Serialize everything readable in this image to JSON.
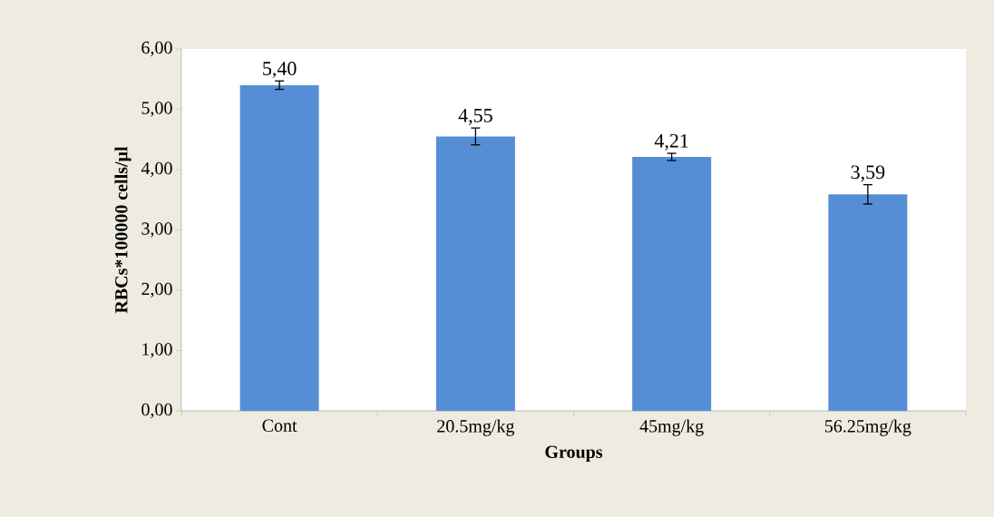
{
  "chart_data": {
    "type": "bar",
    "xlabel": "Groups",
    "ylabel": "RBCs*100000 cells/µl",
    "categories": [
      "Cont",
      "20.5mg/kg",
      "45mg/kg",
      "56.25mg/kg"
    ],
    "values": [
      5.4,
      4.55,
      4.21,
      3.59
    ],
    "errors": [
      0.07,
      0.14,
      0.06,
      0.16
    ],
    "value_labels": [
      "5,40",
      "4,55",
      "4,21",
      "3,59"
    ],
    "color": "#558ed5",
    "ylim": [
      0,
      6
    ],
    "yticks": [
      {
        "value": 0,
        "label": "0,00"
      },
      {
        "value": 1,
        "label": "1,00"
      },
      {
        "value": 2,
        "label": "2,00"
      },
      {
        "value": 3,
        "label": "3,00"
      },
      {
        "value": 4,
        "label": "4,00"
      },
      {
        "value": 5,
        "label": "5,00"
      },
      {
        "value": 6,
        "label": "6,00"
      }
    ],
    "grid": false
  }
}
